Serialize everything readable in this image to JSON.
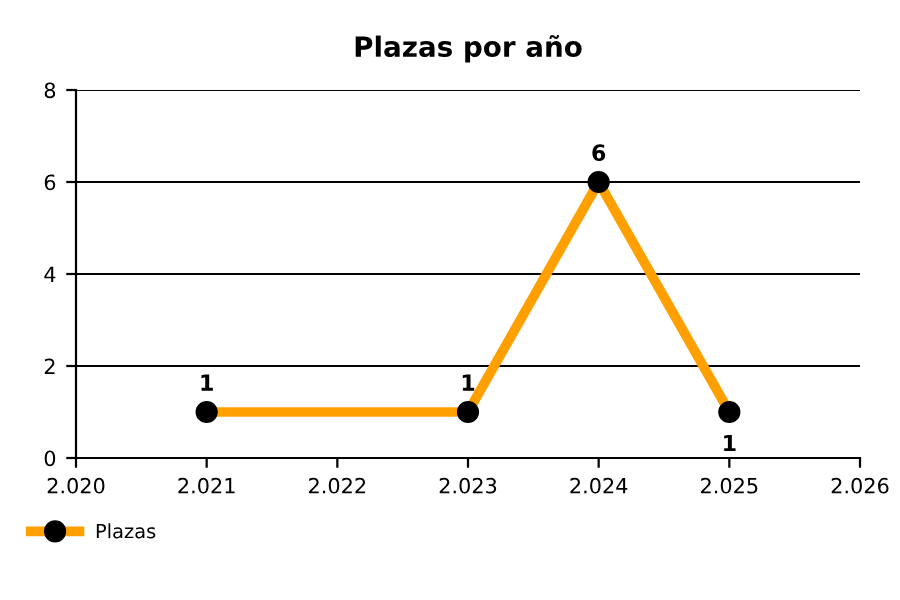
{
  "chart_data": {
    "type": "line",
    "title": "Plazas por año",
    "x": [
      2021,
      2023,
      2024,
      2025
    ],
    "series": [
      {
        "name": "Plazas",
        "color": "#ffa000",
        "values": [
          1,
          1,
          6,
          1
        ]
      }
    ],
    "xlim": [
      2020,
      2026
    ],
    "xticks": [
      {
        "value": 2020,
        "label": "2.020"
      },
      {
        "value": 2021,
        "label": "2.021"
      },
      {
        "value": 2022,
        "label": "2.022"
      },
      {
        "value": 2023,
        "label": "2.023"
      },
      {
        "value": 2024,
        "label": "2.024"
      },
      {
        "value": 2025,
        "label": "2.025"
      },
      {
        "value": 2026,
        "label": "2.026"
      }
    ],
    "ylim": [
      0,
      8
    ],
    "yticks": [
      0,
      2,
      4,
      6,
      8
    ],
    "grid": "y",
    "legend": "bottom left",
    "marker": "circle",
    "line_style": "solid",
    "data_labels": true
  }
}
